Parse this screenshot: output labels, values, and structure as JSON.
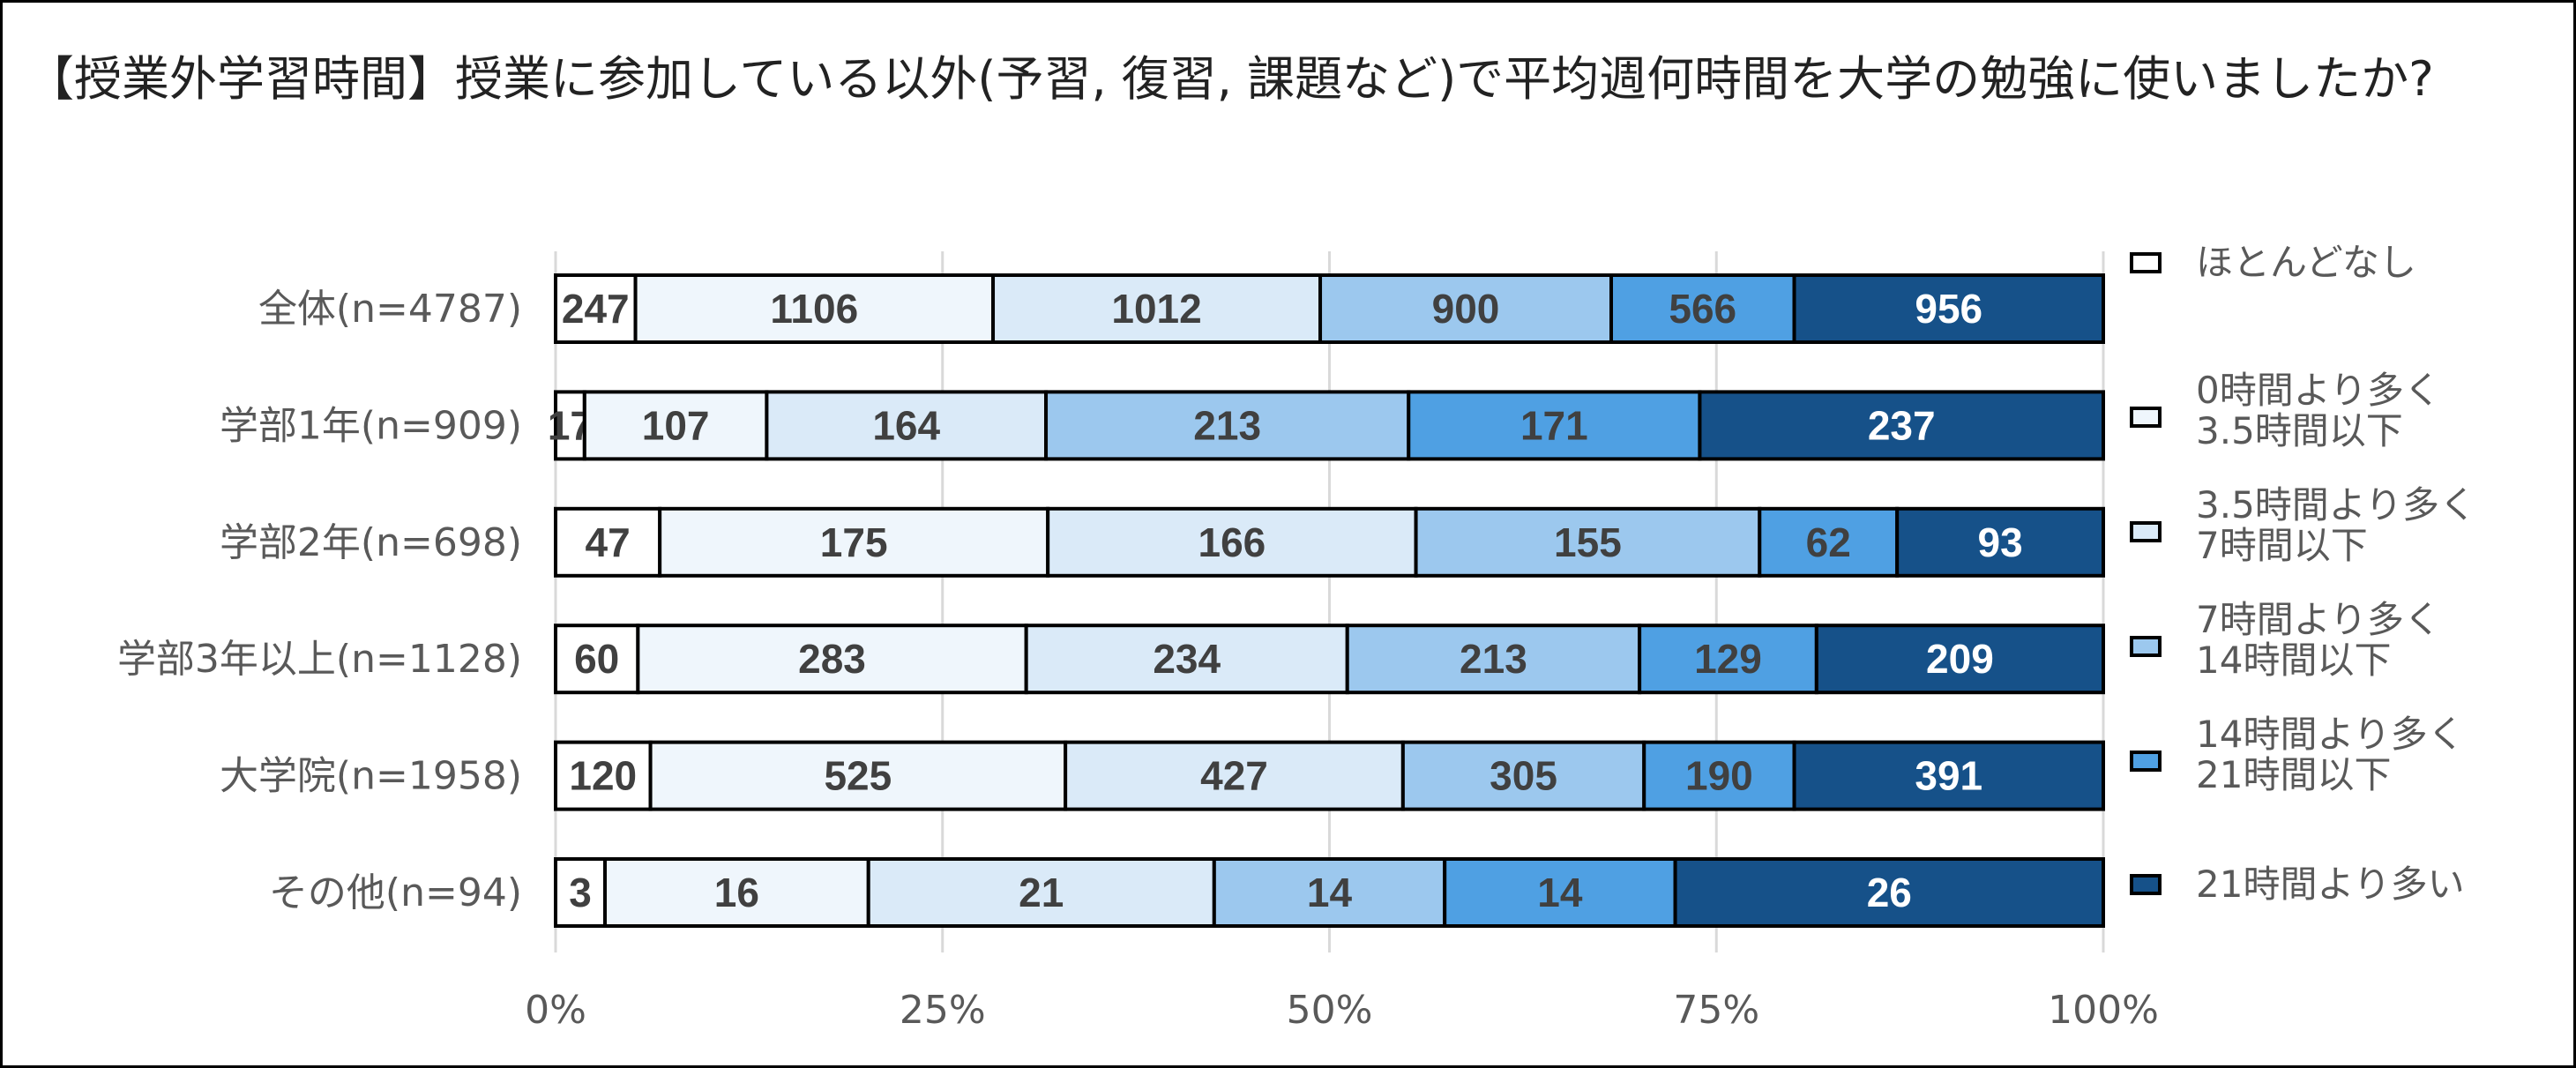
{
  "chart_data": {
    "type": "bar",
    "orientation": "horizontal",
    "stacked": "percent",
    "title": "【授業外学習時間】授業に参加している以外(予習, 復習, 課題など)で平均週何時間を大学の勉強に使いましたか?",
    "xlabel": "",
    "ylabel": "",
    "xlim": [
      0,
      100
    ],
    "x_ticks": [
      "0%",
      "25%",
      "50%",
      "75%",
      "100%"
    ],
    "grid": true,
    "legend_position": "right",
    "categories": [
      "全体(n=4787)",
      "学部1年(n=909)",
      "学部2年(n=698)",
      "学部3年以上(n=1128)",
      "大学院(n=1958)",
      "その他(n=94)"
    ],
    "series": [
      {
        "name": "ほとんどなし",
        "color": "#FFFFFF",
        "label_color": "#404040",
        "values": [
          247,
          17,
          47,
          60,
          120,
          3
        ]
      },
      {
        "name": "0時間より多く\n3.5時間以下",
        "color": "#EFF6FC",
        "label_color": "#404040",
        "values": [
          1106,
          107,
          175,
          283,
          525,
          16
        ]
      },
      {
        "name": "3.5時間より多く\n7時間以下",
        "color": "#DAEAF8",
        "label_color": "#404040",
        "values": [
          1012,
          164,
          166,
          234,
          427,
          21
        ]
      },
      {
        "name": "7時間より多く\n14時間以下",
        "color": "#9CC8EE",
        "label_color": "#404040",
        "values": [
          900,
          213,
          155,
          213,
          305,
          14
        ]
      },
      {
        "name": "14時間より多く\n21時間以下",
        "color": "#4FA0E3",
        "label_color": "#404040",
        "values": [
          566,
          171,
          62,
          129,
          190,
          14
        ]
      },
      {
        "name": "21時間より多い",
        "color": "#165189",
        "label_color": "#FFFFFF",
        "values": [
          956,
          237,
          93,
          209,
          391,
          26
        ]
      }
    ]
  }
}
